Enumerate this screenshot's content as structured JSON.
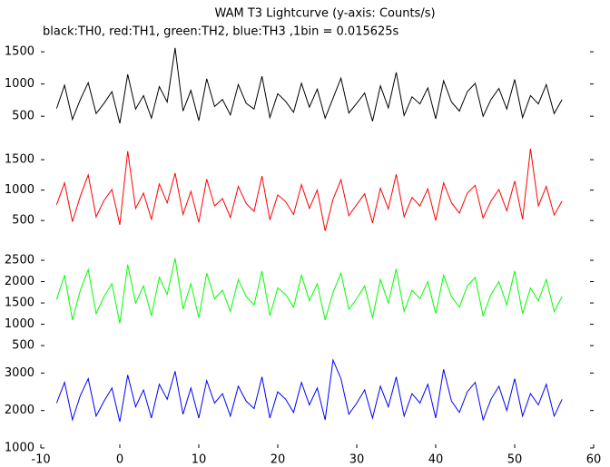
{
  "chart_data": {
    "type": "line",
    "title": "WAM T3 Lightcurve (y-axis: Counts/s)",
    "subtitle": "black:TH0, red:TH1, green:TH2, blue:TH3 ,1bin = 0.015625s",
    "xlim": [
      -10,
      60
    ],
    "xticks": [
      -10,
      0,
      10,
      20,
      30,
      40,
      50,
      60
    ],
    "x": [
      -8,
      -7,
      -6,
      -5,
      -4,
      -3,
      -2,
      -1,
      0,
      1,
      2,
      3,
      4,
      5,
      6,
      7,
      8,
      9,
      10,
      11,
      12,
      13,
      14,
      15,
      16,
      17,
      18,
      19,
      20,
      21,
      22,
      23,
      24,
      25,
      26,
      27,
      28,
      29,
      30,
      31,
      32,
      33,
      34,
      35,
      36,
      37,
      38,
      39,
      40,
      41,
      42,
      43,
      44,
      45,
      46,
      47,
      48,
      49,
      50,
      51,
      52,
      53,
      54,
      55,
      56
    ],
    "panels": [
      {
        "ylim": [
          80,
          1670
        ],
        "yticks": [
          500,
          1000,
          1500
        ],
        "series": [
          {
            "color": "#000000",
            "values": [
              620,
              980,
              450,
              760,
              1020,
              540,
              700,
              880,
              390,
              1150,
              610,
              820,
              470,
              960,
              720,
              1560,
              580,
              900,
              430,
              1080,
              650,
              760,
              520,
              990,
              700,
              610,
              1120,
              480,
              850,
              730,
              560,
              1010,
              640,
              920,
              470,
              780,
              1090,
              550,
              700,
              860,
              420,
              970,
              630,
              1180,
              510,
              800,
              690,
              940,
              460,
              1050,
              720,
              580,
              880,
              1010,
              500,
              760,
              930,
              610,
              1070,
              480,
              820,
              690,
              990,
              540,
              760
            ]
          }
        ]
      },
      {
        "ylim": [
          100,
          1740
        ],
        "yticks": [
          500,
          1000,
          1500
        ],
        "series": [
          {
            "color": "#ff0000",
            "values": [
              760,
              1120,
              480,
              900,
              1250,
              560,
              830,
              1010,
              430,
              1640,
              700,
              950,
              520,
              1100,
              790,
              1280,
              600,
              980,
              470,
              1180,
              740,
              860,
              550,
              1060,
              780,
              650,
              1230,
              510,
              920,
              810,
              600,
              1090,
              700,
              1000,
              330,
              850,
              1170,
              580,
              760,
              940,
              460,
              1030,
              690,
              1260,
              560,
              880,
              740,
              1020,
              500,
              1120,
              790,
              620,
              950,
              1080,
              540,
              820,
              1010,
              660,
              1150,
              520,
              1680,
              740,
              1060,
              590,
              820
            ]
          }
        ]
      },
      {
        "ylim": [
          460,
          2820
        ],
        "yticks": [
          500,
          1000,
          1500,
          2000,
          2500
        ],
        "series": [
          {
            "color": "#00ff00",
            "values": [
              1580,
              2150,
              1100,
              1800,
              2280,
              1250,
              1650,
              1950,
              1020,
              2400,
              1500,
              1900,
              1200,
              2100,
              1700,
              2550,
              1350,
              1950,
              1150,
              2200,
              1600,
              1800,
              1300,
              2050,
              1650,
              1450,
              2250,
              1200,
              1850,
              1700,
              1400,
              2150,
              1550,
              1950,
              1100,
              1750,
              2200,
              1350,
              1600,
              1900,
              1150,
              2050,
              1500,
              2300,
              1300,
              1800,
              1600,
              2000,
              1250,
              2150,
              1650,
              1400,
              1900,
              2100,
              1200,
              1700,
              2000,
              1450,
              2250,
              1250,
              1850,
              1550,
              2050,
              1300,
              1650
            ]
          }
        ]
      },
      {
        "ylim": [
          1000,
          3640
        ],
        "yticks": [
          1000,
          2000,
          3000
        ],
        "series": [
          {
            "color": "#0000ff",
            "values": [
              2200,
              2750,
              1750,
              2400,
              2850,
              1850,
              2250,
              2600,
              1700,
              2950,
              2100,
              2550,
              1800,
              2700,
              2300,
              3050,
              1900,
              2600,
              1800,
              2800,
              2200,
              2450,
              1850,
              2650,
              2250,
              2050,
              2900,
              1800,
              2500,
              2300,
              1950,
              2750,
              2150,
              2600,
              1750,
              3350,
              2850,
              1900,
              2200,
              2550,
              1800,
              2650,
              2100,
              2900,
              1850,
              2450,
              2200,
              2700,
              1800,
              3100,
              2250,
              1950,
              2500,
              2750,
              1750,
              2300,
              2650,
              2000,
              2850,
              1850,
              2450,
              2150,
              2700,
              1850,
              2300
            ]
          }
        ]
      }
    ]
  }
}
